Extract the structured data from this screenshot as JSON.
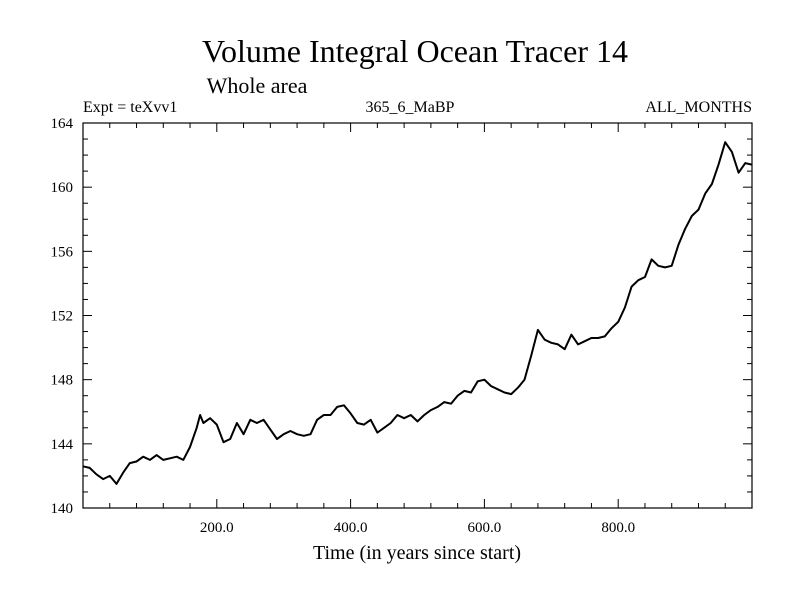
{
  "chart_data": {
    "type": "line",
    "title": "Volume Integral Ocean Tracer 14",
    "subtitle": "Whole area",
    "expt_label": "Expt = teXvv1",
    "run_label": "365_6_MaBP",
    "months_label": "ALL_MONTHS",
    "xlabel": "Time (in years since start)",
    "ylabel": "",
    "xlim": [
      0,
      1000
    ],
    "ylim": [
      140,
      164
    ],
    "x_ticks": [
      200,
      400,
      600,
      800
    ],
    "x_tick_labels": [
      "200.0",
      "400.0",
      "600.0",
      "800.0"
    ],
    "y_ticks": [
      140,
      144,
      148,
      152,
      156,
      160,
      164
    ],
    "y_tick_labels": [
      "140",
      "144",
      "148",
      "152",
      "156",
      "160",
      "164"
    ],
    "series": [
      {
        "name": "Volume Integral Ocean Tracer 14",
        "x": [
          0,
          10,
          20,
          30,
          40,
          50,
          60,
          70,
          80,
          90,
          100,
          110,
          120,
          130,
          140,
          150,
          160,
          170,
          175,
          180,
          190,
          200,
          210,
          220,
          230,
          240,
          250,
          260,
          270,
          280,
          290,
          300,
          310,
          320,
          330,
          340,
          350,
          360,
          370,
          380,
          390,
          400,
          410,
          420,
          430,
          440,
          450,
          460,
          470,
          480,
          490,
          500,
          510,
          520,
          530,
          540,
          550,
          560,
          570,
          580,
          590,
          600,
          610,
          620,
          630,
          640,
          650,
          660,
          670,
          680,
          690,
          700,
          710,
          720,
          730,
          740,
          750,
          760,
          770,
          780,
          790,
          800,
          810,
          820,
          830,
          840,
          850,
          860,
          870,
          880,
          890,
          900,
          910,
          920,
          930,
          940,
          950,
          960,
          970,
          980,
          990,
          1000
        ],
        "values": [
          142.6,
          142.5,
          142.1,
          141.8,
          142.0,
          141.5,
          142.2,
          142.8,
          142.9,
          143.2,
          143.0,
          143.3,
          143.0,
          143.1,
          143.2,
          143.0,
          143.8,
          145.0,
          145.8,
          145.3,
          145.6,
          145.2,
          144.1,
          144.3,
          145.3,
          144.6,
          145.5,
          145.3,
          145.5,
          144.9,
          144.3,
          144.6,
          144.8,
          144.6,
          144.5,
          144.6,
          145.5,
          145.8,
          145.8,
          146.3,
          146.4,
          145.9,
          145.3,
          145.2,
          145.5,
          144.7,
          145.0,
          145.3,
          145.8,
          145.6,
          145.8,
          145.4,
          145.8,
          146.1,
          146.3,
          146.6,
          146.5,
          147.0,
          147.3,
          147.2,
          147.9,
          148.0,
          147.6,
          147.4,
          147.2,
          147.1,
          147.5,
          148.0,
          149.5,
          151.1,
          150.5,
          150.3,
          150.2,
          149.9,
          150.8,
          150.2,
          150.4,
          150.6,
          150.6,
          150.7,
          151.2,
          151.6,
          152.5,
          153.8,
          154.2,
          154.4,
          155.5,
          155.1,
          155.0,
          155.1,
          156.4,
          157.4,
          158.2,
          158.6,
          159.6,
          160.2,
          161.4,
          162.8,
          162.2,
          160.9,
          161.5,
          161.4
        ]
      }
    ]
  }
}
